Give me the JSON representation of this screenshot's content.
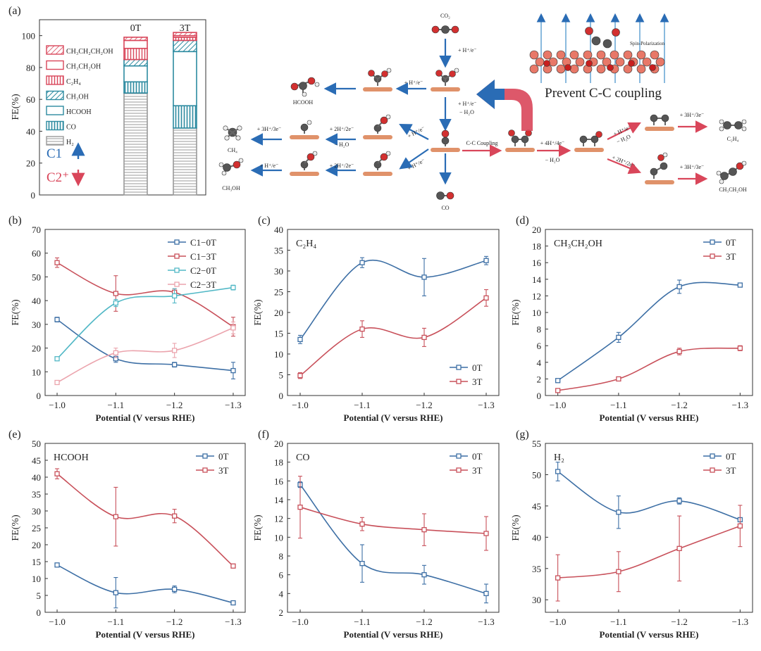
{
  "figure": {
    "panel_labels": [
      "(a)",
      "(b)",
      "(c)",
      "(d)",
      "(e)",
      "(f)",
      "(g)"
    ],
    "xlabel": "Potential (V versus RHE)",
    "ylabel": "FE(%)",
    "colors": {
      "blue": "#3d6fa5",
      "red": "#c8505a",
      "cyan": "#52b8c6",
      "pink": "#eba4ad",
      "cu": "#e0926a",
      "arrow_blue": "#2a6cb5",
      "arrow_red": "#d9465a"
    }
  },
  "panel_a": {
    "ylabel": "FE(%)",
    "yticks": [
      "0",
      "20",
      "40",
      "60",
      "80",
      "100"
    ],
    "columns": [
      "0T",
      "3T"
    ],
    "legend": [
      "CH₃CH₂CH₂OH",
      "CH₃CH₂OH",
      "C₂H₄",
      "CH₃OH",
      "HCOOH",
      "CO",
      "H₂"
    ],
    "c1_label": "C1",
    "c2_label": "C2⁺",
    "prevent_label": "Prevent C-C coupling",
    "spin_label": "Spin-Polarization",
    "scheme": {
      "co2": "CO₂",
      "step_h1": "+ H⁺/e⁻",
      "step_h2": "+ H⁺/e⁻",
      "step_h2o": "− H₂O",
      "step_left_h": "+ H⁺/e⁻",
      "hcooh": "HCOOH",
      "step_diag_up": "+ H⁺/e⁻",
      "step_diag_down": "+ H⁺/e⁻",
      "step_2h_a": "+ 2H⁺/2e⁻",
      "step_h2o_a": "− H₂O",
      "step_3h": "+ 3H⁺/3e⁻",
      "ch4": "CH₄",
      "step_2h_b": "+ 2H⁺/2e⁻",
      "step_h_b": "+ H⁺/e⁻",
      "ch3oh": "CH₃OH",
      "co": "CO",
      "cc_coupling": "C-C Coupling",
      "step_4h": "+ 4H⁺/4e⁻",
      "step_h2o_b": "− H₂O",
      "step_up_h": "+ H⁺/e⁻",
      "step_up_h2o": "− H₂O",
      "step_down_2h": "+ 2H⁺/2e⁻",
      "step_3h_c2h4": "+ 3H⁺/3e⁻",
      "c2h4": "C₂H₄",
      "step_3h_etoh": "+ 3H⁺/3e⁻",
      "ch3ch2oh": "CH₃CH₂OH"
    }
  },
  "chart_data": [
    {
      "panel": "a",
      "type": "bar",
      "stacked": true,
      "categories": [
        "0T",
        "3T"
      ],
      "ylabel": "FE(%)",
      "ylim": [
        0,
        110
      ],
      "series": [
        {
          "name": "H₂",
          "values": [
            64,
            42
          ]
        },
        {
          "name": "CO",
          "values": [
            7,
            14
          ]
        },
        {
          "name": "HCOOH",
          "values": [
            10,
            34
          ]
        },
        {
          "name": "CH₃OH",
          "values": [
            4,
            7
          ]
        },
        {
          "name": "C₂H₄",
          "values": [
            7,
            2
          ]
        },
        {
          "name": "CH₃CH₂OH",
          "values": [
            5,
            1
          ]
        },
        {
          "name": "CH₃CH₂CH₂OH",
          "values": [
            2,
            2
          ]
        }
      ]
    },
    {
      "panel": "b",
      "type": "line",
      "x": [
        "−1.0",
        "−1.1",
        "−1.2",
        "−1.3"
      ],
      "ylim": [
        0,
        70
      ],
      "yticks": [
        "0",
        "10",
        "20",
        "30",
        "40",
        "50",
        "60",
        "70"
      ],
      "xlabel": "Potential (V versus RHE)",
      "ylabel": "FE(%)",
      "legend": "top-right",
      "series": [
        {
          "name": "C1−0T",
          "values": [
            32,
            15.5,
            13,
            10.5
          ],
          "errors": [
            1,
            1.5,
            1,
            3.5
          ],
          "color": "#3d6fa5"
        },
        {
          "name": "C1−3T",
          "values": [
            56,
            43,
            43.5,
            29
          ],
          "errors": [
            2,
            7.5,
            1.5,
            4
          ],
          "color": "#c8505a"
        },
        {
          "name": "C2−0T",
          "values": [
            15.5,
            39,
            42,
            45.5
          ],
          "errors": [
            0.5,
            1.5,
            3,
            1
          ],
          "color": "#52b8c6"
        },
        {
          "name": "C2−3T",
          "values": [
            5.5,
            18,
            19,
            28.5
          ],
          "errors": [
            0.5,
            2,
            3,
            2.5
          ],
          "color": "#eba4ad"
        }
      ]
    },
    {
      "panel": "c",
      "type": "line",
      "title": "C₂H₄",
      "x": [
        "−1.0",
        "−1.1",
        "−1.2",
        "−1.3"
      ],
      "ylim": [
        0,
        40
      ],
      "yticks": [
        "0",
        "5",
        "10",
        "15",
        "20",
        "25",
        "30",
        "35",
        "40"
      ],
      "xlabel": "Potential (V versus RHE)",
      "ylabel": "FE(%)",
      "legend": "bottom-right",
      "series": [
        {
          "name": "0T",
          "values": [
            13.5,
            32,
            28.5,
            32.5
          ],
          "errors": [
            1,
            1.2,
            4.5,
            1
          ],
          "color": "#3d6fa5"
        },
        {
          "name": "3T",
          "values": [
            4.8,
            16,
            14,
            23.5
          ],
          "errors": [
            0.7,
            2,
            2.2,
            2
          ],
          "color": "#c8505a"
        }
      ]
    },
    {
      "panel": "d",
      "type": "line",
      "title": "CH₃CH₂OH",
      "x": [
        "−1.0",
        "−1.1",
        "−1.2",
        "−1.3"
      ],
      "ylim": [
        0,
        20
      ],
      "yticks": [
        "0",
        "2",
        "4",
        "6",
        "8",
        "10",
        "12",
        "14",
        "16",
        "18",
        "20"
      ],
      "xlabel": "Potential (V versus RHE)",
      "ylabel": "FE(%)",
      "legend": "top-right",
      "series": [
        {
          "name": "0T",
          "values": [
            1.8,
            7,
            13.1,
            13.3
          ],
          "errors": [
            0.2,
            0.6,
            0.8,
            0.1
          ],
          "color": "#3d6fa5"
        },
        {
          "name": "3T",
          "values": [
            0.6,
            2,
            5.3,
            5.7
          ],
          "errors": [
            0.1,
            0.1,
            0.4,
            0.3
          ],
          "color": "#c8505a"
        }
      ]
    },
    {
      "panel": "e",
      "type": "line",
      "title": "HCOOH",
      "x": [
        "−1.0",
        "−1.1",
        "−1.2",
        "−1.3"
      ],
      "ylim": [
        0,
        50
      ],
      "yticks": [
        "0",
        "5",
        "10",
        "15",
        "20",
        "25",
        "30",
        "35",
        "40",
        "45",
        "50"
      ],
      "xlabel": "Potential (V versus RHE)",
      "ylabel": "FE(%)",
      "legend": "top-right",
      "series": [
        {
          "name": "0T",
          "values": [
            14,
            5.8,
            6.8,
            2.8
          ],
          "errors": [
            0.3,
            4.5,
            1,
            0.3
          ],
          "color": "#3d6fa5"
        },
        {
          "name": "3T",
          "values": [
            41,
            28.3,
            28.5,
            13.7
          ],
          "errors": [
            1.5,
            8.7,
            2,
            0.3
          ],
          "color": "#c8505a"
        }
      ]
    },
    {
      "panel": "f",
      "type": "line",
      "title": "CO",
      "x": [
        "−1.0",
        "−1.1",
        "−1.2",
        "−1.3"
      ],
      "ylim": [
        2,
        20
      ],
      "yticks": [
        "2",
        "4",
        "6",
        "8",
        "10",
        "12",
        "14",
        "16",
        "18",
        "20"
      ],
      "xlabel": "Potential (V versus RHE)",
      "ylabel": "FE(%)",
      "legend": "top-right",
      "series": [
        {
          "name": "0T",
          "values": [
            15.6,
            7.2,
            6,
            4
          ],
          "errors": [
            0.3,
            2,
            1,
            1
          ],
          "color": "#3d6fa5"
        },
        {
          "name": "3T",
          "values": [
            13.2,
            11.4,
            10.8,
            10.4
          ],
          "errors": [
            3.3,
            0.7,
            1.7,
            1.8
          ],
          "color": "#c8505a"
        }
      ]
    },
    {
      "panel": "g",
      "type": "line",
      "title": "H₂",
      "x": [
        "−1.0",
        "−1.1",
        "−1.2",
        "−1.3"
      ],
      "ylim": [
        28,
        55
      ],
      "yticks": [
        "30",
        "35",
        "40",
        "45",
        "50",
        "55"
      ],
      "xlabel": "Potential (V versus RHE)",
      "ylabel": "FE(%)",
      "legend": "top-right",
      "series": [
        {
          "name": "0T",
          "values": [
            50.5,
            44,
            45.8,
            42.8
          ],
          "errors": [
            1.5,
            2.6,
            0.5,
            0.3
          ],
          "color": "#3d6fa5"
        },
        {
          "name": "3T",
          "values": [
            33.5,
            34.5,
            38.2,
            41.8
          ],
          "errors": [
            3.7,
            3.2,
            5.2,
            3.3
          ],
          "color": "#c8505a"
        }
      ]
    }
  ]
}
